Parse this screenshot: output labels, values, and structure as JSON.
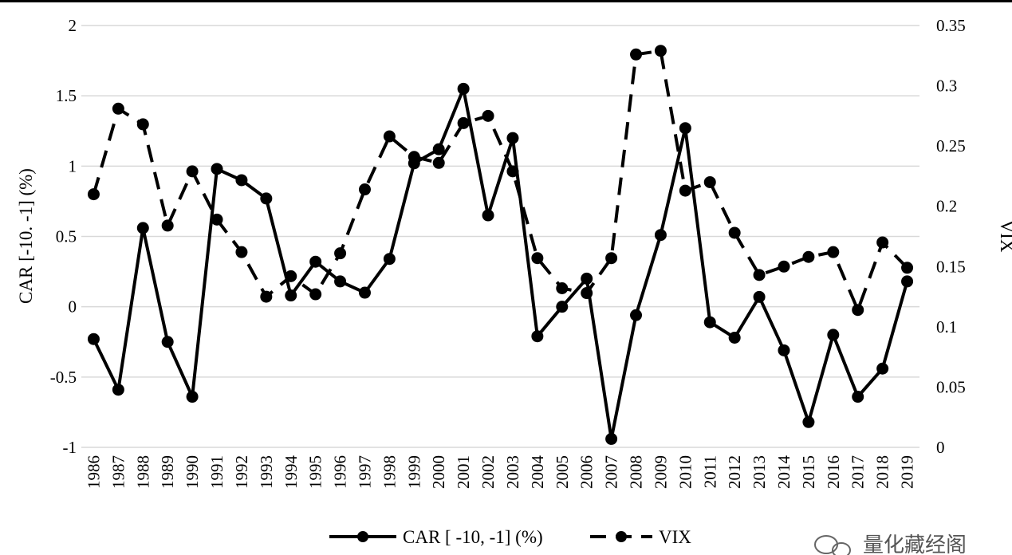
{
  "chart_data": {
    "type": "line",
    "xlabel": "",
    "ylabel": "CAR [-10. -1] (%)",
    "y2label": "VIX",
    "ylim": [
      -1,
      2
    ],
    "y2lim": [
      0,
      0.35
    ],
    "yticks": [
      "2",
      "1.5",
      "1",
      "0.5",
      "0",
      "-0.5",
      "-1"
    ],
    "y2ticks": [
      "0.35",
      "0.3",
      "0.25",
      "0.2",
      "0.15",
      "0.1",
      "0.05",
      "0"
    ],
    "categories": [
      "1986",
      "1987",
      "1988",
      "1989",
      "1990",
      "1991",
      "1992",
      "1993",
      "1994",
      "1995",
      "1996",
      "1997",
      "1998",
      "1999",
      "2000",
      "2001",
      "2002",
      "2003",
      "2004",
      "2005",
      "2006",
      "2007",
      "2008",
      "2009",
      "2010",
      "2011",
      "2012",
      "2013",
      "2014",
      "2015",
      "2016",
      "2017",
      "2018",
      "2019"
    ],
    "grid": true,
    "legend_position": "bottom",
    "series": [
      {
        "name": "CAR [ -10, -1] (%)",
        "axis": "left",
        "style": "solid",
        "values": [
          -0.23,
          -0.59,
          0.56,
          -0.25,
          -0.64,
          0.98,
          0.9,
          0.77,
          0.08,
          0.32,
          0.18,
          0.1,
          0.34,
          1.02,
          1.12,
          1.55,
          0.65,
          1.2,
          -0.21,
          0.0,
          0.2,
          -0.94,
          -0.06,
          0.51,
          1.27,
          -0.11,
          -0.22,
          0.07,
          -0.31,
          -0.82,
          -0.2,
          -0.64,
          -0.44,
          0.18
        ]
      },
      {
        "name": "VIX",
        "axis": "right",
        "style": "dashed",
        "values": [
          0.21,
          0.281,
          0.268,
          0.184,
          0.229,
          0.189,
          0.162,
          0.125,
          0.142,
          0.127,
          0.161,
          0.214,
          0.258,
          0.241,
          0.236,
          0.269,
          0.275,
          0.229,
          0.157,
          0.132,
          0.128,
          0.157,
          0.326,
          0.329,
          0.213,
          0.22,
          0.178,
          0.143,
          0.15,
          0.158,
          0.162,
          0.114,
          0.17,
          0.149
        ]
      }
    ]
  },
  "watermark": {
    "text": "量化藏经阁"
  },
  "colors": {
    "line": "#000000",
    "grid": "#d9d9d9",
    "watermark": "#555555"
  }
}
